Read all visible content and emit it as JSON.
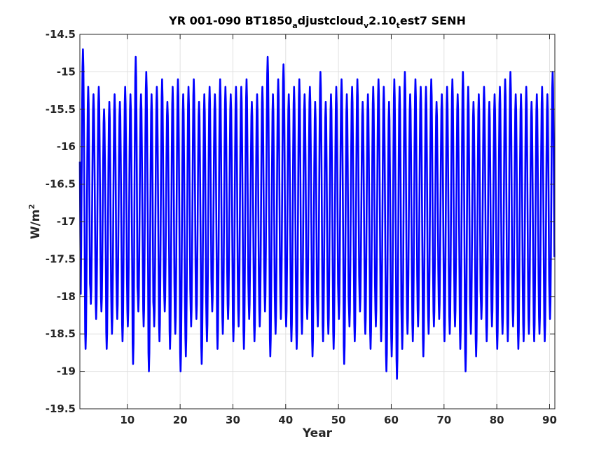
{
  "chart_data": {
    "type": "line",
    "title": {
      "main": "YR 001-090 BT1850",
      "sub1": "a",
      "mid1": "djustcloud",
      "sub2": "v",
      "mid2": "2.10",
      "sub3": "t",
      "end": "est7 SENH"
    },
    "xlabel": "Year",
    "ylabel": {
      "base": "W/m",
      "sup": "2"
    },
    "xlim": [
      1,
      91
    ],
    "ylim": [
      -19.5,
      -14.5
    ],
    "xticks": [
      10,
      20,
      30,
      40,
      50,
      60,
      70,
      80,
      90
    ],
    "yticks": [
      -14.5,
      -15,
      -15.5,
      -16,
      -16.5,
      -17,
      -17.5,
      -18,
      -18.5,
      -19,
      -19.5
    ],
    "xtick_labels": [
      "10",
      "20",
      "30",
      "40",
      "50",
      "60",
      "70",
      "80",
      "90"
    ],
    "ytick_labels": [
      "-14.5",
      "-15",
      "-15.5",
      "-16",
      "-16.5",
      "-17",
      "-17.5",
      "-18",
      "-18.5",
      "-19",
      "-19.5"
    ],
    "grid": true,
    "series": [
      {
        "color": "#0000ff",
        "annual_max": [
          -14.7,
          -15.2,
          -15.3,
          -15.2,
          -15.5,
          -15.4,
          -15.3,
          -15.4,
          -15.2,
          -15.3,
          -14.8,
          -15.3,
          -15.0,
          -15.3,
          -15.2,
          -15.1,
          -15.4,
          -15.2,
          -15.1,
          -15.3,
          -15.2,
          -15.1,
          -15.4,
          -15.3,
          -15.2,
          -15.3,
          -15.1,
          -15.2,
          -15.3,
          -15.2,
          -15.2,
          -15.1,
          -15.4,
          -15.3,
          -15.2,
          -14.8,
          -15.3,
          -15.1,
          -14.9,
          -15.3,
          -15.2,
          -15.1,
          -15.3,
          -15.2,
          -15.4,
          -15.0,
          -15.4,
          -15.3,
          -15.2,
          -15.1,
          -15.3,
          -15.2,
          -15.1,
          -15.4,
          -15.3,
          -15.2,
          -15.1,
          -15.2,
          -15.4,
          -15.1,
          -15.2,
          -15.0,
          -15.3,
          -15.1,
          -15.2,
          -15.2,
          -15.1,
          -15.4,
          -15.3,
          -15.2,
          -15.1,
          -15.3,
          -15.0,
          -15.2,
          -15.4,
          -15.3,
          -15.2,
          -15.4,
          -15.3,
          -15.2,
          -15.1,
          -15.0,
          -15.3,
          -15.3,
          -15.2,
          -15.4,
          -15.3,
          -15.2,
          -15.3,
          -15.0
        ],
        "annual_min": [
          -18.2,
          -18.7,
          -18.1,
          -18.3,
          -18.2,
          -18.7,
          -18.5,
          -18.3,
          -18.6,
          -18.4,
          -18.9,
          -18.2,
          -18.4,
          -19.0,
          -18.4,
          -18.6,
          -18.2,
          -18.7,
          -18.5,
          -19.0,
          -18.8,
          -18.4,
          -18.3,
          -18.9,
          -18.6,
          -18.2,
          -18.7,
          -18.5,
          -18.3,
          -18.6,
          -18.4,
          -18.7,
          -18.3,
          -18.6,
          -18.4,
          -18.2,
          -18.8,
          -18.5,
          -18.3,
          -18.4,
          -18.6,
          -18.7,
          -18.5,
          -18.3,
          -18.8,
          -18.4,
          -18.6,
          -18.5,
          -18.7,
          -18.3,
          -18.9,
          -18.4,
          -18.6,
          -18.2,
          -18.5,
          -18.7,
          -18.4,
          -18.6,
          -19.0,
          -18.8,
          -19.1,
          -18.7,
          -18.5,
          -18.6,
          -18.4,
          -18.8,
          -18.5,
          -18.4,
          -18.3,
          -18.6,
          -18.5,
          -18.4,
          -18.7,
          -19.0,
          -18.5,
          -18.8,
          -18.3,
          -18.6,
          -18.4,
          -18.7,
          -18.5,
          -18.6,
          -18.4,
          -18.7,
          -18.6,
          -18.5,
          -18.6,
          -18.5,
          -18.6,
          -18.3
        ]
      }
    ]
  }
}
